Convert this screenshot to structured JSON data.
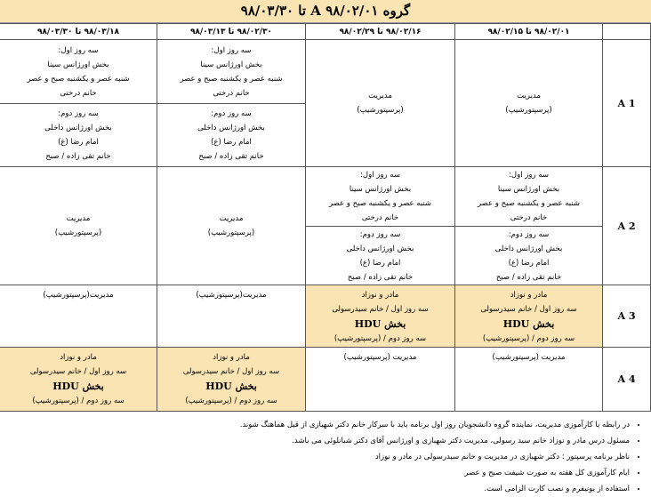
{
  "title": "گروه A   ۹۸/۰۲/۰۱ تا ۹۸/۰۳/۳۰",
  "columns": [
    "",
    "۹۸/۰۲/۰۱ تا ۹۸/۰۲/۱۵",
    "۹۸/۰۲/۱۶ تا ۹۸/۰۲/۲۹",
    "۹۸/۰۲/۳۰ تا ۹۸/۰۳/۱۳",
    "۹۸/۰۳/۱۸ تا ۹۸/۰۳/۳۰"
  ],
  "blocks": {
    "mgmt": [
      "مدیریت",
      "(پرسپتورشیپ)"
    ],
    "mgmt_inline": [
      "مدیریت(پرسپتورشیپ)"
    ],
    "mgmt_inline2": [
      "مدیریت (پرسپتورشیپ)"
    ],
    "first3": [
      "سه روز اول:",
      "بخش اورژانس سینا",
      "شنبه عصر و یکشنبه صبح و عصر",
      "خانم درختی"
    ],
    "second3": [
      "سه روز دوم:",
      "بخش اورژانس داخلی",
      "امام رضا (ع)",
      "خانم تقی زاده / صبح"
    ],
    "maternal": [
      "مادر و نوزاد",
      "سه روز اول / خانم سیدرسولی",
      "بخش HDU",
      "سه روز دوم /  (پرسپتورشیپ)"
    ]
  },
  "rows": [
    {
      "label": "A 1",
      "cells": [
        {
          "type": "mgmt"
        },
        {
          "type": "mgmt"
        },
        {
          "type": "split"
        },
        {
          "type": "split"
        }
      ]
    },
    {
      "label": "A 2",
      "cells": [
        {
          "type": "split"
        },
        {
          "type": "split"
        },
        {
          "type": "mgmt"
        },
        {
          "type": "mgmt"
        }
      ]
    },
    {
      "label": "A 3",
      "cells": [
        {
          "type": "maternal"
        },
        {
          "type": "maternal"
        },
        {
          "type": "mgmt_inline"
        },
        {
          "type": "mgmt_inline"
        }
      ]
    },
    {
      "label": "A 4",
      "cells": [
        {
          "type": "mgmt_inline2"
        },
        {
          "type": "mgmt_inline2"
        },
        {
          "type": "maternal"
        },
        {
          "type": "maternal"
        }
      ]
    }
  ],
  "notes": [
    "در رابطه با کارآموزی مدیریت، نماینده گروه دانشجویان روز اول برنامه باید با سرکار خانم دکتر شهبازی از قبل هماهنگ شوند.",
    "مسئول درس  مادر و نوزاد خانم سید رسولی، مدیریت دکتر شهبازی و اورژانس آقای دکتر شبانلوئی می باشد.",
    "ناظر برنامه پرسپتور : دکتر شهبازی در مدیریت و خانم سیدرسولی در مادر و نوزاد",
    "ایام کارآموزی کل هفته به صورت شیفت صبح و عصر",
    "استفاده از یونیفرم و نصب کارت الزامی است."
  ],
  "colors": {
    "highlight": "#fbe4b4",
    "border": "#555555"
  }
}
